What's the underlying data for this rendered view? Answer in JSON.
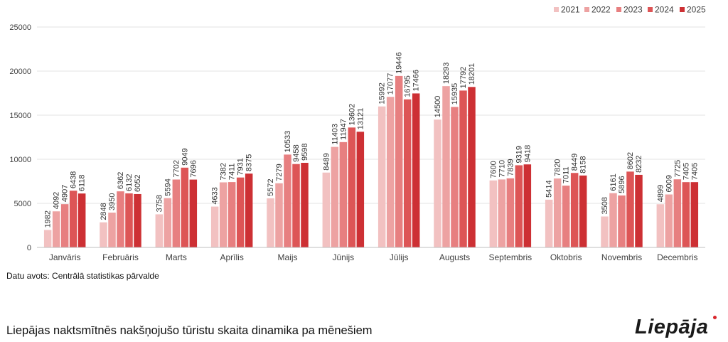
{
  "chart_data": {
    "type": "bar",
    "title": "",
    "xlabel": "",
    "ylabel": "",
    "ylim": [
      0,
      25000
    ],
    "yticks": [
      0,
      5000,
      10000,
      15000,
      20000,
      25000
    ],
    "grid": true,
    "legend_position": "top-right",
    "categories": [
      "Janvāris",
      "Februāris",
      "Marts",
      "Aprīlis",
      "Maijs",
      "Jūnijs",
      "Jūlijs",
      "Augusts",
      "Septembris",
      "Oktobris",
      "Novembris",
      "Decembris"
    ],
    "series": [
      {
        "name": "2021",
        "color": "#f2c1c1",
        "values": [
          1982,
          2848,
          3758,
          4633,
          5572,
          8489,
          15992,
          14500,
          7600,
          5414,
          3508,
          4899
        ]
      },
      {
        "name": "2022",
        "color": "#eda2a2",
        "values": [
          4092,
          3950,
          5594,
          7382,
          7279,
          11403,
          17077,
          18293,
          7710,
          7820,
          6161,
          6009
        ]
      },
      {
        "name": "2023",
        "color": "#e77f80",
        "values": [
          4907,
          6362,
          7702,
          7411,
          10533,
          11947,
          19446,
          15935,
          7839,
          7011,
          5896,
          7725
        ]
      },
      {
        "name": "2024",
        "color": "#dd5556",
        "values": [
          6438,
          6132,
          9049,
          7931,
          9458,
          13602,
          16795,
          17792,
          9319,
          8449,
          8602,
          7405
        ]
      },
      {
        "name": "2025",
        "color": "#cd3034",
        "values": [
          6118,
          6052,
          7696,
          8375,
          9598,
          13121,
          17466,
          18201,
          9418,
          8158,
          8232,
          7405
        ]
      }
    ]
  },
  "source_text": "Datu avots: Centrālā statistikas pārvalde",
  "caption": "Liepājas naktsmītnēs nakšņojušo tūristu skaita dinamika pa mēnešiem",
  "logo_text": "Liepāja",
  "colors": {
    "grid": "#e3e3e3",
    "axis": "#bfbfbf",
    "text": "#404040",
    "logo_dot": "#d9252b"
  }
}
